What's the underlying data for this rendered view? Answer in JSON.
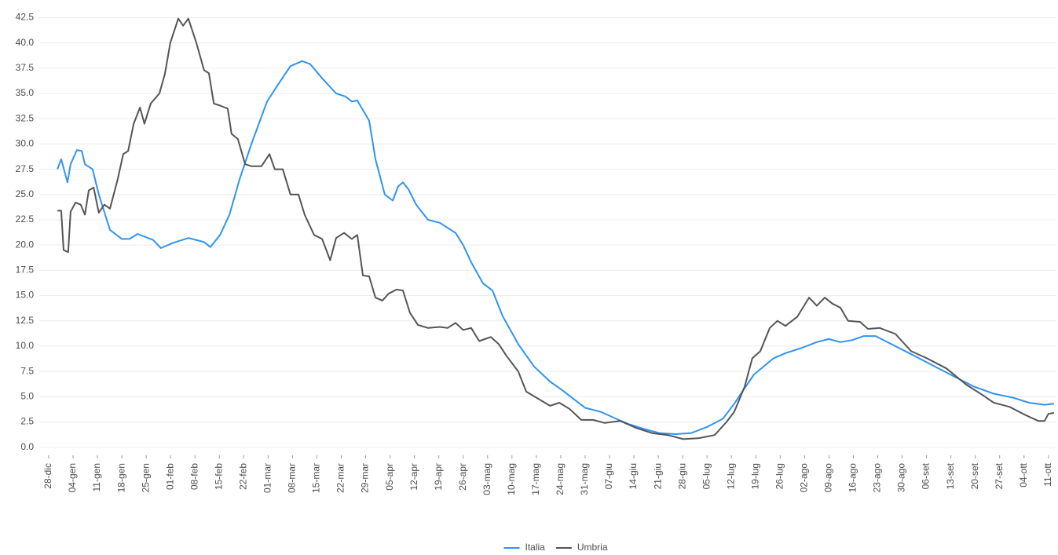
{
  "chart_data": {
    "type": "line",
    "xlim": [
      -2.7,
      289.3
    ],
    "xticks": [
      {
        "value": 0,
        "label": "28-dic"
      },
      {
        "value": 7,
        "label": "04-gen"
      },
      {
        "value": 14,
        "label": "11-gen"
      },
      {
        "value": 21,
        "label": "18-gen"
      },
      {
        "value": 28,
        "label": "25-gen"
      },
      {
        "value": 35,
        "label": "01-feb"
      },
      {
        "value": 42,
        "label": "08-feb"
      },
      {
        "value": 49,
        "label": "15-feb"
      },
      {
        "value": 56,
        "label": "22-feb"
      },
      {
        "value": 63,
        "label": "01-mar"
      },
      {
        "value": 70,
        "label": "08-mar"
      },
      {
        "value": 77,
        "label": "15-mar"
      },
      {
        "value": 84,
        "label": "22-mar"
      },
      {
        "value": 91,
        "label": "29-mar"
      },
      {
        "value": 98,
        "label": "05-apr"
      },
      {
        "value": 105,
        "label": "12-apr"
      },
      {
        "value": 112,
        "label": "19-apr"
      },
      {
        "value": 119,
        "label": "26-apr"
      },
      {
        "value": 126,
        "label": "03-mag"
      },
      {
        "value": 133,
        "label": "10-mag"
      },
      {
        "value": 140,
        "label": "17-mag"
      },
      {
        "value": 147,
        "label": "24-mag"
      },
      {
        "value": 154,
        "label": "31-mag"
      },
      {
        "value": 161,
        "label": "07-giu"
      },
      {
        "value": 168,
        "label": "14-giu"
      },
      {
        "value": 175,
        "label": "21-giu"
      },
      {
        "value": 182,
        "label": "28-giu"
      },
      {
        "value": 189,
        "label": "05-lug"
      },
      {
        "value": 196,
        "label": "12-lug"
      },
      {
        "value": 203,
        "label": "19-lug"
      },
      {
        "value": 210,
        "label": "26-lug"
      },
      {
        "value": 217,
        "label": "02-ago"
      },
      {
        "value": 224,
        "label": "09-ago"
      },
      {
        "value": 231,
        "label": "16-ago"
      },
      {
        "value": 238,
        "label": "23-ago"
      },
      {
        "value": 245,
        "label": "30-ago"
      },
      {
        "value": 252,
        "label": "06-set"
      },
      {
        "value": 259,
        "label": "13-set"
      },
      {
        "value": 266,
        "label": "20-set"
      },
      {
        "value": 273,
        "label": "27-set"
      },
      {
        "value": 280,
        "label": "04-ott"
      },
      {
        "value": 287,
        "label": "11-ott"
      }
    ],
    "ylim": [
      -0.8,
      43
    ],
    "yticks": [
      {
        "value": 0,
        "label": "0.0"
      },
      2.5,
      {
        "value": 5,
        "label": "5.0"
      },
      7.5,
      {
        "value": 10,
        "label": "10.0"
      },
      12.5,
      {
        "value": 15,
        "label": "15.0"
      },
      17.5,
      {
        "value": 20,
        "label": "20.0"
      },
      22.5,
      {
        "value": 25,
        "label": "25.0"
      },
      27.5,
      {
        "value": 30,
        "label": "30.0"
      },
      32.5,
      {
        "value": 35,
        "label": "35.0"
      },
      37.5,
      {
        "value": 40,
        "label": "40.0"
      },
      42.5
    ],
    "grid": true,
    "legend": "bottom",
    "series": [
      {
        "name": "Italia",
        "color": "#2f94f3",
        "x": [
          2.5,
          3.6,
          5.4,
          6.3,
          8.1,
          9.5,
          10.4,
          12.6,
          14.4,
          17.6,
          21,
          23.2,
          25.5,
          30,
          32.2,
          35.6,
          40.1,
          44.6,
          46.4,
          49.2,
          51.9,
          54.8,
          58.2,
          62.7,
          66.1,
          69.4,
          72.8,
          75.1,
          78.5,
          82.5,
          85.2,
          87,
          88.6,
          92,
          93.8,
          96.5,
          98.8,
          100.3,
          101.7,
          103.3,
          105.5,
          108.9,
          112.3,
          116.8,
          119,
          121.3,
          124.7,
          127.4,
          130.3,
          134.8,
          139.3,
          143.9,
          147.2,
          150.6,
          154,
          158.5,
          163,
          166.4,
          170.9,
          175.4,
          179.9,
          184.4,
          189,
          193.5,
          196.8,
          199.1,
          202.5,
          208.1,
          211.5,
          216,
          220.5,
          223.9,
          227.3,
          230.7,
          234,
          237.4,
          241.9,
          247.6,
          253.2,
          258.8,
          265.6,
          271.3,
          276.9,
          281.4,
          285.9,
          288.6
        ],
        "values": [
          27.5,
          28.5,
          26.2,
          28,
          29.4,
          29.3,
          28,
          27.5,
          25,
          21.5,
          20.6,
          20.6,
          21.1,
          20.5,
          19.7,
          20.2,
          20.7,
          20.3,
          19.8,
          21,
          23,
          26.5,
          30,
          34.2,
          36,
          37.7,
          38.2,
          37.9,
          36.5,
          35,
          34.7,
          34.2,
          34.3,
          32.3,
          28.5,
          25,
          24.4,
          25.8,
          26.2,
          25.5,
          24,
          22.5,
          22.2,
          21.2,
          20,
          18.3,
          16.2,
          15.5,
          13,
          10.2,
          8,
          6.5,
          5.7,
          4.8,
          3.9,
          3.5,
          2.8,
          2.3,
          1.8,
          1.4,
          1.3,
          1.4,
          2,
          2.8,
          4.3,
          5.5,
          7.2,
          8.8,
          9.3,
          9.8,
          10.4,
          10.7,
          10.4,
          10.6,
          11,
          11,
          10.2,
          9.2,
          8.2,
          7.2,
          6,
          5.3,
          4.9,
          4.4,
          4.2,
          4.3
        ]
      },
      {
        "name": "Umbria",
        "color": "#555555",
        "x": [
          2.5,
          3.6,
          4.3,
          5.6,
          6.3,
          7.7,
          9.2,
          10.4,
          11.5,
          12.9,
          14.4,
          16,
          17.6,
          19.8,
          21.4,
          22.8,
          24.4,
          26.2,
          27.5,
          29.3,
          31.8,
          33.4,
          34.9,
          37.2,
          38.6,
          40.1,
          42.4,
          44.6,
          46,
          47.4,
          49.2,
          51.4,
          52.5,
          54.3,
          56.4,
          58.2,
          61.1,
          63.4,
          64.9,
          67.2,
          69.4,
          71.7,
          73.5,
          76.2,
          78.5,
          80.8,
          82.5,
          84.8,
          87,
          88.6,
          90.2,
          92,
          93.8,
          95.8,
          97.6,
          99.9,
          101.7,
          103.7,
          106,
          108.9,
          112.3,
          114.5,
          116.8,
          119,
          121.3,
          123.6,
          126.9,
          129.2,
          131.5,
          134.8,
          137.1,
          140.5,
          143.9,
          146.6,
          149.5,
          152.9,
          156.3,
          159.6,
          164.1,
          168.7,
          173.2,
          177.7,
          182.2,
          186.7,
          191.2,
          194.6,
          196.8,
          199.8,
          202,
          204.3,
          207,
          209.2,
          211.5,
          214.9,
          218.3,
          220.5,
          222.8,
          225,
          227.3,
          229.5,
          232.9,
          235.2,
          238.6,
          243.1,
          247.6,
          252.1,
          257.7,
          263.4,
          267.9,
          271.3,
          275.8,
          280.3,
          284.1,
          285.9,
          287,
          288.6
        ],
        "values": [
          23.4,
          23.4,
          19.5,
          19.3,
          23.3,
          24.2,
          24,
          23,
          25.4,
          25.7,
          23.2,
          24,
          23.6,
          26.5,
          29,
          29.3,
          32,
          33.6,
          32,
          34,
          35,
          37,
          40,
          42.4,
          41.7,
          42.4,
          40,
          37.3,
          37,
          34,
          33.8,
          33.5,
          31,
          30.5,
          28,
          27.8,
          27.8,
          29,
          27.5,
          27.5,
          25,
          25,
          23,
          21,
          20.6,
          18.5,
          20.7,
          21.2,
          20.6,
          21,
          17,
          16.9,
          14.8,
          14.5,
          15.2,
          15.6,
          15.5,
          13.3,
          12.1,
          11.8,
          11.9,
          11.8,
          12.3,
          11.6,
          11.8,
          10.5,
          10.9,
          10.2,
          9,
          7.5,
          5.5,
          4.8,
          4.1,
          4.4,
          3.8,
          2.7,
          2.7,
          2.4,
          2.6,
          1.9,
          1.4,
          1.2,
          0.8,
          0.9,
          1.2,
          2.5,
          3.5,
          6,
          8.8,
          9.5,
          11.8,
          12.5,
          12,
          12.9,
          14.8,
          14,
          14.8,
          14.2,
          13.8,
          12.5,
          12.4,
          11.7,
          11.8,
          11.2,
          9.5,
          8.8,
          7.8,
          6.2,
          5.2,
          4.4,
          4,
          3.2,
          2.6,
          2.6,
          3.3,
          3.4
        ]
      }
    ]
  }
}
